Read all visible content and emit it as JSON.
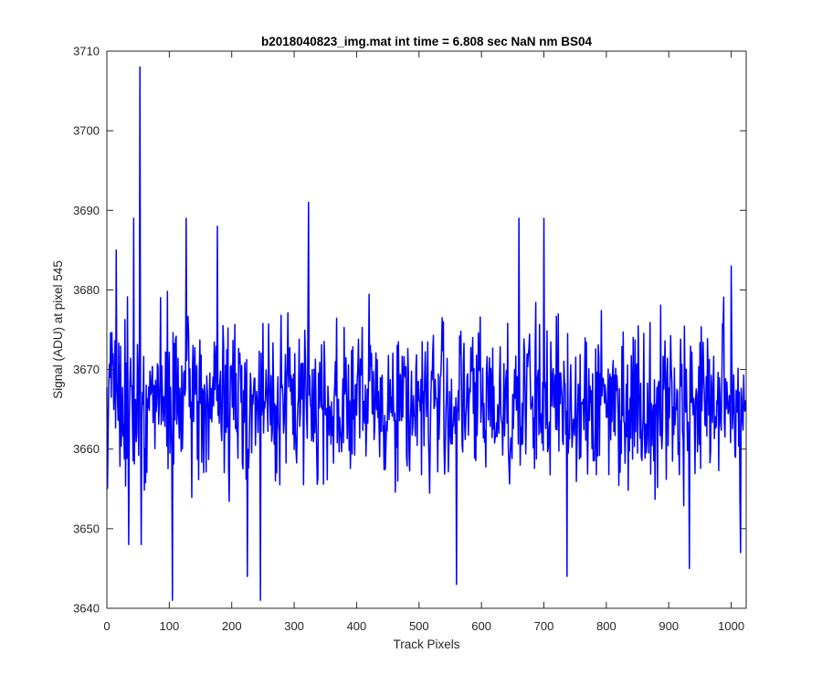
{
  "chart_data": {
    "type": "line",
    "title": "b2018040823_img.mat int time = 6.808 sec  NaN nm BS04",
    "xlabel": "Track Pixels",
    "ylabel": "Signal (ADU) at pixel 545",
    "xlim": [
      0,
      1024
    ],
    "ylim": [
      3640,
      3710
    ],
    "xticks": [
      0,
      100,
      200,
      300,
      400,
      500,
      600,
      700,
      800,
      900,
      1000
    ],
    "yticks": [
      3640,
      3650,
      3660,
      3670,
      3680,
      3690,
      3700,
      3710
    ],
    "xtick_labels": [
      "0",
      "100",
      "200",
      "300",
      "400",
      "500",
      "600",
      "700",
      "800",
      "900",
      "1000"
    ],
    "ytick_labels": [
      "3640",
      "3650",
      "3660",
      "3670",
      "3680",
      "3690",
      "3700",
      "3710"
    ],
    "grid": false,
    "series": [
      {
        "color": "#0000ff",
        "n_points": 1024,
        "mean": 3666,
        "noise_halfrange": 10,
        "spikes": [
          {
            "x": 53,
            "y": 3708
          },
          {
            "x": 105,
            "y": 3641
          },
          {
            "x": 246,
            "y": 3641
          },
          {
            "x": 323,
            "y": 3691
          },
          {
            "x": 43,
            "y": 3689
          },
          {
            "x": 127,
            "y": 3689
          },
          {
            "x": 560,
            "y": 3643
          },
          {
            "x": 700,
            "y": 3689
          },
          {
            "x": 737,
            "y": 3644
          },
          {
            "x": 933,
            "y": 3645
          },
          {
            "x": 15,
            "y": 3685
          },
          {
            "x": 35,
            "y": 3648
          },
          {
            "x": 55,
            "y": 3648
          },
          {
            "x": 177,
            "y": 3688
          },
          {
            "x": 225,
            "y": 3644
          },
          {
            "x": 660,
            "y": 3689
          },
          {
            "x": 1000,
            "y": 3683
          },
          {
            "x": 1015,
            "y": 3647
          }
        ]
      }
    ]
  }
}
